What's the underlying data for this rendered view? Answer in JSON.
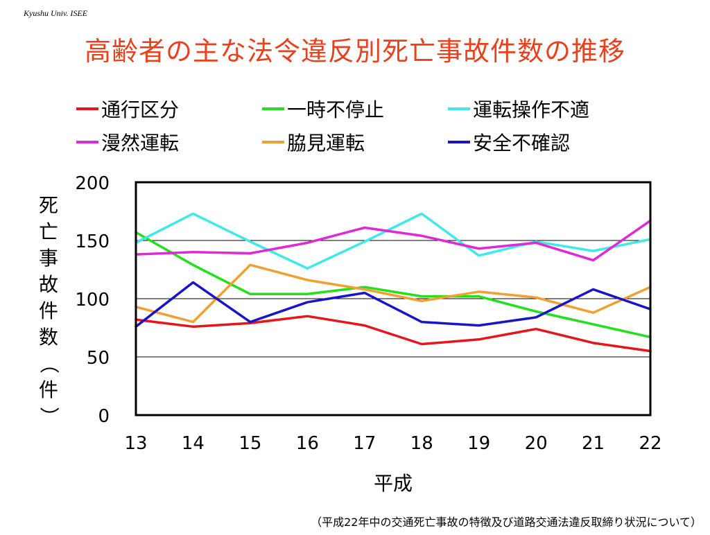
{
  "header_note": "Kyushu Univ. ISEE",
  "slide_title": "高齢者の主な法令違反別死亡事故件数の推移",
  "footnote": "（平成22年中の交通死亡事故の特徴及び道路交通法違反取締り状況について）",
  "chart_data": {
    "type": "line",
    "xlabel": "平成",
    "ylabel": "死亡事故件数（件）",
    "x": [
      13,
      14,
      15,
      16,
      17,
      18,
      19,
      20,
      21,
      22
    ],
    "ylim": [
      0,
      200
    ],
    "yticks": [
      0,
      50,
      100,
      150,
      200
    ],
    "grid": true,
    "legend_position": "top",
    "series": [
      {
        "name": "通行区分",
        "color": "#e8141c",
        "values": [
          82,
          76,
          79,
          85,
          77,
          61,
          65,
          74,
          62,
          55
        ]
      },
      {
        "name": "一時不停止",
        "color": "#22e01a",
        "values": [
          157,
          129,
          104,
          104,
          110,
          102,
          102,
          89,
          78,
          67
        ]
      },
      {
        "name": "運転操作不適",
        "color": "#40e8e8",
        "values": [
          148,
          173,
          149,
          126,
          149,
          173,
          137,
          149,
          141,
          151
        ]
      },
      {
        "name": "漫然運転",
        "color": "#e028d8",
        "values": [
          138,
          140,
          139,
          148,
          161,
          154,
          143,
          148,
          133,
          167
        ]
      },
      {
        "name": "脇見運転",
        "color": "#f0a030",
        "values": [
          93,
          80,
          129,
          116,
          108,
          98,
          106,
          101,
          88,
          110
        ]
      },
      {
        "name": "安全不確認",
        "color": "#1a14c8",
        "values": [
          76,
          114,
          80,
          97,
          105,
          80,
          77,
          84,
          108,
          91
        ]
      }
    ]
  }
}
